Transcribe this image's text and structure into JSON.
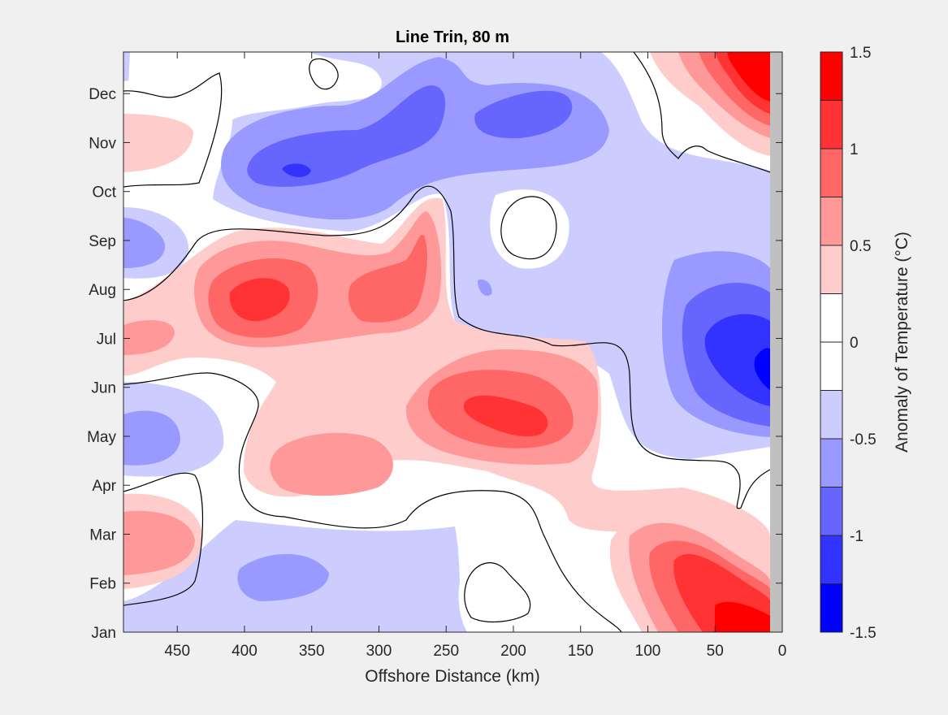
{
  "chart_data": {
    "type": "contour",
    "title": "Line Trin, 80 m",
    "xlabel": "Offshore Distance (km)",
    "ylabel": "",
    "x_direction": "reversed",
    "xlim": [
      490,
      0
    ],
    "x_ticks": [
      450,
      400,
      350,
      300,
      250,
      200,
      150,
      100,
      50,
      0
    ],
    "y_ticks": [
      "Jan",
      "Feb",
      "Mar",
      "Apr",
      "May",
      "Jun",
      "Jul",
      "Aug",
      "Sep",
      "Oct",
      "Nov",
      "Dec"
    ],
    "colorbar": {
      "label": "Anomaly of Temperature (°C)",
      "range": [
        -1.5,
        1.5
      ],
      "levels": [
        -1.5,
        -1.25,
        -1.0,
        -0.75,
        -0.5,
        -0.25,
        0.0,
        0.25,
        0.5,
        0.75,
        1.0,
        1.25,
        1.5
      ],
      "tick_values": [
        -1.5,
        -1,
        -0.5,
        0,
        0.5,
        1,
        1.5
      ],
      "tick_labels": [
        "-1.5",
        "-1",
        "-0.5",
        "0",
        "0.5",
        "1",
        "1.5"
      ],
      "colors": [
        "#0000ff",
        "#3333ff",
        "#6666ff",
        "#9999ff",
        "#ccccff",
        "#ffffff",
        "#ffffff",
        "#ffcccc",
        "#ff9999",
        "#ff6666",
        "#ff3333",
        "#ff0000"
      ]
    },
    "zero_contour": true,
    "features": [
      {
        "name": "warm-core-aug",
        "center_km": 370,
        "center_month": "Aug",
        "peak": 1.1
      },
      {
        "name": "warm-core-jun",
        "center_km": 195,
        "center_month": "Jun",
        "peak": 1.1
      },
      {
        "name": "warm-core-jan",
        "center_km": 35,
        "center_month": "Jan",
        "peak": 1.3
      },
      {
        "name": "warm-core-dec",
        "center_km": 30,
        "center_month": "Dec",
        "peak": 1.3
      },
      {
        "name": "cold-core-nov",
        "center_km": 355,
        "center_month": "Nov",
        "peak": -1.1
      },
      {
        "name": "cold-core-jul",
        "center_km": 30,
        "center_month": "Jul",
        "peak": -1.1
      },
      {
        "name": "cold-core-dec",
        "center_km": 185,
        "center_month": "Dec",
        "peak": -0.9
      }
    ]
  }
}
